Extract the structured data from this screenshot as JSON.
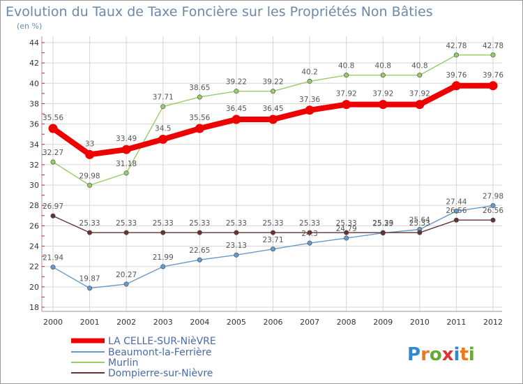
{
  "chart_data": {
    "type": "line",
    "title": "Evolution du Taux de Taxe Foncière sur les Propriétés Non Bâties",
    "subtitle": "(en %)",
    "x": [
      "2000",
      "2001",
      "2002",
      "2003",
      "2004",
      "2005",
      "2006",
      "2007",
      "2008",
      "2009",
      "2010",
      "2011",
      "2012"
    ],
    "ylim": [
      18,
      44
    ],
    "yticks": [
      18,
      20,
      22,
      24,
      26,
      28,
      30,
      32,
      34,
      36,
      38,
      40,
      42,
      44
    ],
    "grid": true,
    "legend_position": "bottom-left",
    "series": [
      {
        "name": "LA CELLE-SUR-NièVRE",
        "color": "#ee0000",
        "values": [
          35.56,
          33,
          33.49,
          34.5,
          35.56,
          36.45,
          36.45,
          37.36,
          37.92,
          37.92,
          37.92,
          39.76,
          39.76
        ],
        "labels": [
          "35.56",
          "33",
          "33.49",
          "34.5",
          "35.56",
          "36.45",
          "36.45",
          "37.36",
          "37.92",
          "37.92",
          "37.92",
          "39.76",
          "39.76"
        ]
      },
      {
        "name": "Beaumont-la-Ferrière",
        "color": "#6699cc",
        "values": [
          21.94,
          19.87,
          20.27,
          21.99,
          22.65,
          23.13,
          23.71,
          24.3,
          24.79,
          25.29,
          25.64,
          27.44,
          27.98
        ],
        "labels": [
          "21.94",
          "19.87",
          "20.27",
          "21.99",
          "22.65",
          "23.13",
          "23.71",
          "24.3",
          "24.79",
          "25.29",
          "25.64",
          "27.44",
          "27.98"
        ]
      },
      {
        "name": "Murlin",
        "color": "#99cc66",
        "values": [
          32.27,
          29.98,
          31.18,
          37.71,
          38.65,
          39.22,
          39.22,
          40.2,
          40.8,
          40.8,
          40.8,
          42.78,
          42.78
        ],
        "labels": [
          "32.27",
          "29.98",
          "31.18",
          "37.71",
          "38.65",
          "39.22",
          "39.22",
          "40.2",
          "40.8",
          "40.8",
          "40.8",
          "42.78",
          "42.78"
        ]
      },
      {
        "name": "Dompierre-sur-Nièvre",
        "color": "#663333",
        "values": [
          26.97,
          25.33,
          25.33,
          25.33,
          25.33,
          25.33,
          25.33,
          25.33,
          25.33,
          25.33,
          25.33,
          26.56,
          26.56
        ],
        "labels": [
          "26.97",
          "25.33",
          "25.33",
          "25.33",
          "25.33",
          "25.33",
          "25.33",
          "25.33",
          "25.33",
          "25.33",
          "25.33",
          "26.56",
          "26.56"
        ]
      }
    ],
    "logo": "Proxiti"
  }
}
